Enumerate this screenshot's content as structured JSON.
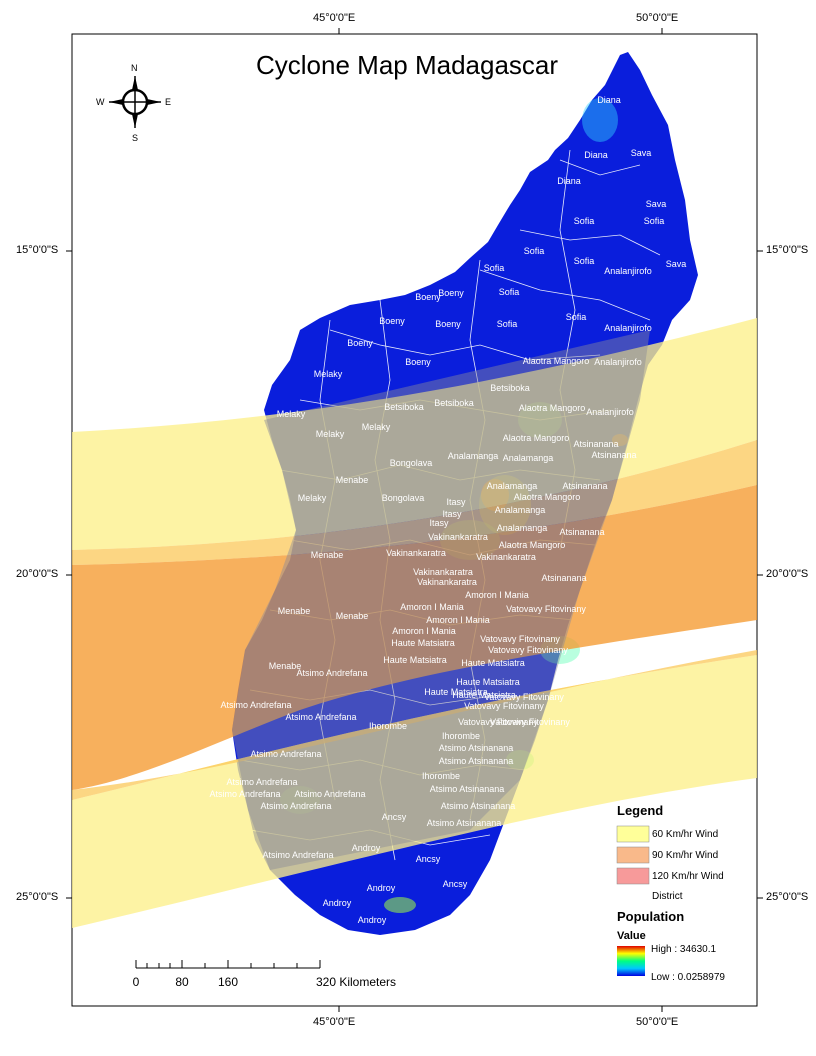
{
  "title": "Cyclone Map Madagascar",
  "grid": {
    "top_longitudes": [
      "45°0'0\"E",
      "50°0'0\"E"
    ],
    "bottom_longitudes": [
      "45°0'0\"E",
      "50°0'0\"E"
    ],
    "left_latitudes": [
      "15°0'0\"S",
      "20°0'0\"S",
      "25°0'0\"S"
    ],
    "right_latitudes": [
      "15°0'0\"S",
      "20°0'0\"S",
      "25°0'0\"S"
    ]
  },
  "compass": {
    "n": "N",
    "s": "S",
    "e": "E",
    "w": "W"
  },
  "legend": {
    "heading": "Legend",
    "items": [
      {
        "label": "60 Km/hr Wind",
        "color": "#ffff99"
      },
      {
        "label": "90 Km/hr Wind",
        "color": "#f9b98a"
      },
      {
        "label": "120 Km/hr Wind",
        "color": "#f79a9a"
      },
      {
        "label": "District",
        "color": "#ffffff"
      }
    ],
    "population_heading": "Population",
    "value_heading": "Value",
    "high_label": "High : 34630.1",
    "low_label": "Low : 0.0258979"
  },
  "scale_bar": {
    "ticks": [
      "0",
      "80",
      "160",
      "320 Kilometers"
    ]
  },
  "colors": {
    "land": "#0a1edc",
    "wind_60": "#fdf08a",
    "wind_90": "#fbc85a",
    "wind_120": "#f59a30",
    "district_line": "#ffffff"
  },
  "region_labels": [
    "Diana",
    "Diana",
    "Diana",
    "Sava",
    "Sava",
    "Sava",
    "Sofia",
    "Sofia",
    "Sofia",
    "Sofia",
    "Sofia",
    "Sofia",
    "Sofia",
    "Sofia",
    "Analanjirofo",
    "Analanjirofo",
    "Analanjirofo",
    "Analanjirofo",
    "Boeny",
    "Boeny",
    "Boeny",
    "Boeny",
    "Boeny",
    "Boeny",
    "Melaky",
    "Melaky",
    "Melaky",
    "Melaky",
    "Melaky",
    "Alaotra Mangoro",
    "Alaotra Mangoro",
    "Alaotra Mangoro",
    "Alaotra Mangoro",
    "Alaotra Mangoro",
    "Betsiboka",
    "Betsiboka",
    "Betsiboka",
    "Atsinanana",
    "Atsinanana",
    "Atsinanana",
    "Atsinanana",
    "Atsinanana",
    "Analamanga",
    "Analamanga",
    "Analamanga",
    "Analamanga",
    "Analamanga",
    "Bongolava",
    "Bongolava",
    "Menabe",
    "Menabe",
    "Menabe",
    "Menabe",
    "Menabe",
    "Itasy",
    "Itasy",
    "Itasy",
    "Vakinankaratra",
    "Vakinankaratra",
    "Vakinankaratra",
    "Vakinankaratra",
    "Vakinankaratra",
    "Amoron I Mania",
    "Amoron I Mania",
    "Amoron I Mania",
    "Amoron I Mania",
    "Vatovavy Fitovinany",
    "Vatovavy Fitovinany",
    "Vatovavy Fitovinany",
    "Vatovavy Fitovinany",
    "Vatovavy Fitovinany",
    "Vatovavy Fitovinany",
    "Vatovavy Fitovinany",
    "Haute Matsiatra",
    "Haute Matsiatra",
    "Haute Matsiatra",
    "Haute Matsiatra",
    "Haute Matsiatra",
    "Haute Matsiatra",
    "Atsimo Andrefana",
    "Atsimo Andrefana",
    "Atsimo Andrefana",
    "Atsimo Andrefana",
    "Atsimo Andrefana",
    "Atsimo Andrefana",
    "Atsimo Andrefana",
    "Atsimo Andrefana",
    "Atsimo Andrefana",
    "Ihorombe",
    "Ihorombe",
    "Ihorombe",
    "Atsimo Atsinanana",
    "Atsimo Atsinanana",
    "Atsimo Atsinanana",
    "Atsimo Atsinanana",
    "Atsimo Atsinanana",
    "Ancsy",
    "Ancsy",
    "Ancsy",
    "Androy",
    "Androy",
    "Androy",
    "Androy"
  ]
}
